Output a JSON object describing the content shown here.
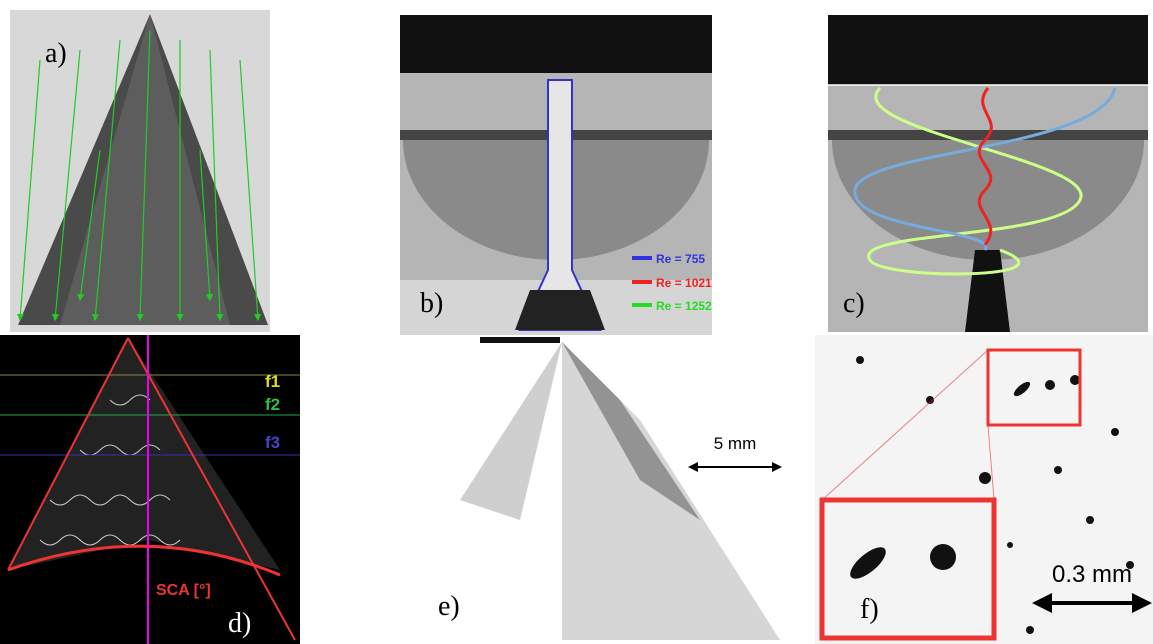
{
  "panels": [
    {
      "label": "a)"
    },
    {
      "label": "b)",
      "legend": [
        "Re = 755",
        "Re = 1021",
        "Re = 1252"
      ]
    },
    {
      "label": "c)"
    },
    {
      "label": "d)",
      "levels": [
        "f1",
        "f2",
        "f3"
      ],
      "angle_label": "SCA [°]"
    },
    {
      "label": "e)",
      "scale": "5 mm"
    },
    {
      "label": "f)",
      "scale": "0.3 mm"
    }
  ]
}
